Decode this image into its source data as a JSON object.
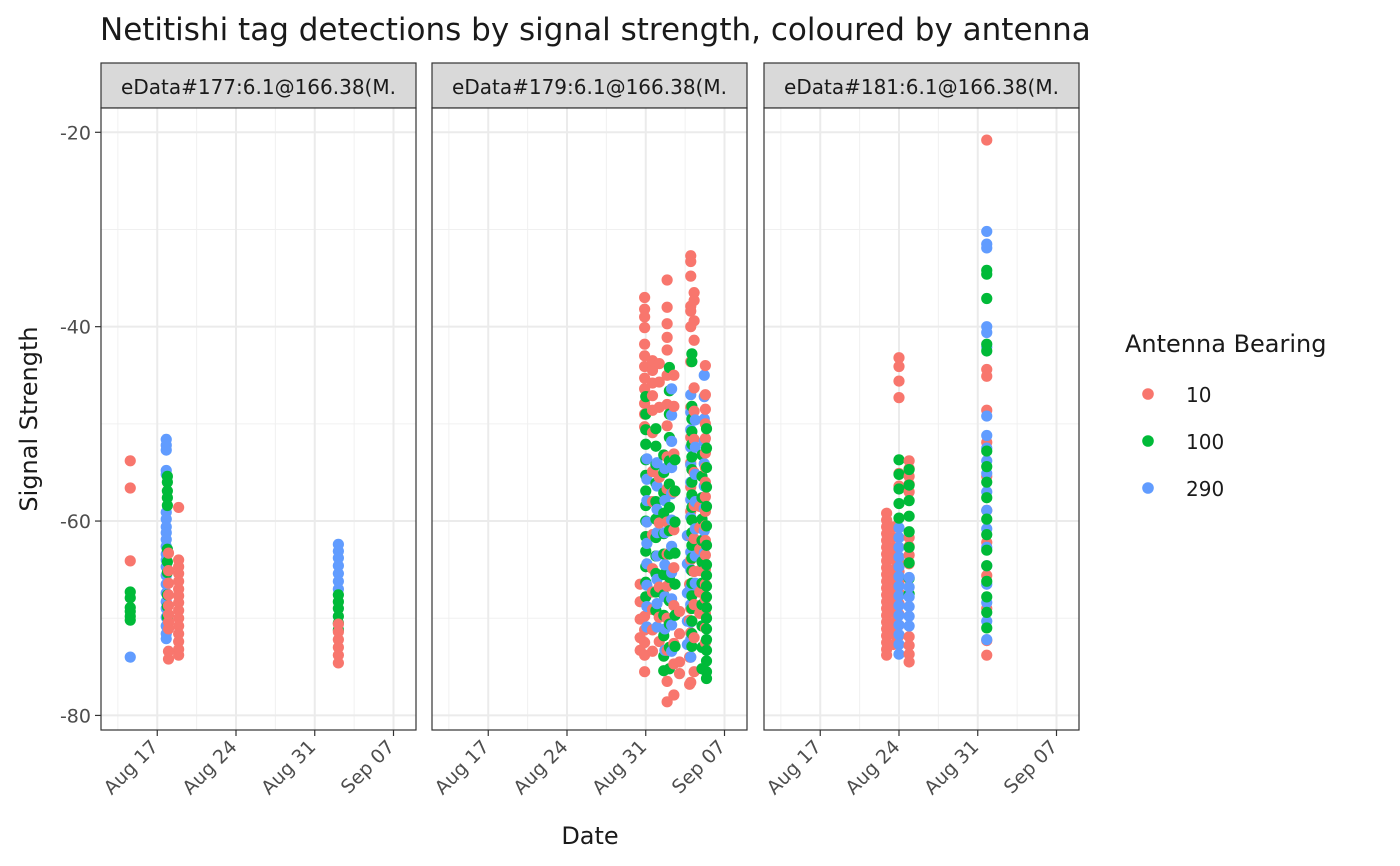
{
  "chart_data": {
    "type": "scatter",
    "title": "Netitishi tag detections by signal strength, coloured by antenna",
    "xlabel": "Date",
    "ylabel": "Signal Strength",
    "x_range": [
      "2023-08-12",
      "2023-09-09"
    ],
    "ylim": [
      -81.5,
      -17.5
    ],
    "y_ticks": [
      -20,
      -40,
      -60,
      -80
    ],
    "y_tick_labels": [
      "-20",
      "-40",
      "-60",
      "-80"
    ],
    "x_ticks": [
      "2023-08-17",
      "2023-08-24",
      "2023-08-31",
      "2023-09-07"
    ],
    "x_tick_labels": [
      "Aug 17",
      "Aug 24",
      "Aug 31",
      "Sep 07"
    ],
    "grid": true,
    "legend": {
      "title": "Antenna Bearing",
      "placement": "right",
      "entries": [
        {
          "label": "10",
          "color": "#F8766D"
        },
        {
          "label": "100",
          "color": "#00BA38"
        },
        {
          "label": "290",
          "color": "#619CFF"
        }
      ]
    },
    "panels": [
      {
        "strip": "eData#177:6.1@166.38(M.",
        "clusters": [
          {
            "date": "2023-08-14.6",
            "antenna": "10",
            "values": [
              -53.8,
              -56.6,
              -64.1
            ]
          },
          {
            "date": "2023-08-14.6",
            "antenna": "100",
            "values": [
              -67.3,
              -67.9,
              -68.9,
              -69.3,
              -69.8,
              -70.2
            ]
          },
          {
            "date": "2023-08-14.6",
            "antenna": "290",
            "values": [
              -74.0
            ]
          },
          {
            "date": "2023-08-17.8",
            "antenna": "290",
            "values": [
              -51.6,
              -52.2,
              -52.7,
              -54.8,
              -55.2,
              -59.1,
              -59.8,
              -60.6,
              -61.2,
              -61.9,
              -62.6,
              -63.4,
              -64.0,
              -64.7,
              -65.6,
              -66.5,
              -67.4,
              -68.3,
              -69.0,
              -69.9,
              -70.8,
              -71.6,
              -72.1
            ]
          },
          {
            "date": "2023-08-17.9",
            "antenna": "100",
            "values": [
              -55.4,
              -56.0,
              -56.9,
              -57.6,
              -58.4,
              -62.9,
              -64.2,
              -65.3,
              -67.6,
              -68.8,
              -69.9
            ]
          },
          {
            "date": "2023-08-18.0",
            "antenna": "10",
            "values": [
              -63.3,
              -65.1,
              -66.4,
              -67.6,
              -68.7,
              -69.6,
              -70.4,
              -71.1,
              -73.4,
              -74.2
            ]
          },
          {
            "date": "2023-08-18.9",
            "antenna": "10",
            "values": [
              -58.6,
              -64.0,
              -64.7,
              -65.4,
              -66.2,
              -67.0,
              -67.7,
              -68.4,
              -69.2,
              -70.0,
              -70.8,
              -71.6,
              -72.4,
              -73.2,
              -73.8
            ]
          },
          {
            "date": "2023-09-02.1",
            "antenna": "290",
            "values": [
              -62.4,
              -63.1,
              -63.8,
              -64.6,
              -65.4,
              -66.2,
              -67.0
            ]
          },
          {
            "date": "2023-09-02.1",
            "antenna": "100",
            "values": [
              -67.6,
              -68.3,
              -69.0,
              -69.8,
              -70.5,
              -71.2
            ]
          },
          {
            "date": "2023-09-02.1",
            "antenna": "10",
            "values": [
              -70.6,
              -71.4,
              -72.2,
              -73.0,
              -73.8,
              -74.6
            ]
          }
        ]
      },
      {
        "strip": "eData#179:6.1@166.38(M.",
        "clusters": [
          {
            "date": "2023-08-30.5",
            "antenna": "10",
            "values": [
              -66.5,
              -68.3,
              -70.1,
              -72.0,
              -73.3
            ]
          },
          {
            "date": "2023-08-30.9",
            "antenna": "10",
            "values": [
              -37.0,
              -38.2,
              -39.0,
              -40.1,
              -41.8,
              -43.0,
              -44.1,
              -45.3,
              -46.4,
              -47.9,
              -49.0,
              -50.3,
              -69.8,
              -71.2,
              -72.5,
              -73.8,
              -75.5
            ]
          },
          {
            "date": "2023-08-31.0",
            "antenna": "100",
            "values": [
              -47.2,
              -49.0,
              -50.6,
              -52.1,
              -53.7,
              -55.3,
              -56.9,
              -58.4,
              -60.0,
              -61.6,
              -63.1,
              -64.7,
              -66.3,
              -67.8
            ]
          },
          {
            "date": "2023-08-31.1",
            "antenna": "290",
            "values": [
              -53.6,
              -55.7,
              -57.9,
              -60.1,
              -62.3,
              -64.4,
              -66.6,
              -68.8,
              -70.9
            ]
          },
          {
            "date": "2023-08-31.6",
            "antenna": "10",
            "values": [
              -43.5,
              -44.5,
              -45.8,
              -47.1,
              -48.6,
              -50.9,
              -54.9,
              -58.0,
              -61.4,
              -64.9,
              -67.3,
              -69.1,
              -71.2,
              -73.4
            ]
          },
          {
            "date": "2023-08-31.9",
            "antenna": "100",
            "values": [
              -50.5,
              -52.3,
              -54.2,
              -56.1,
              -58.0,
              -59.8,
              -61.7,
              -63.6,
              -65.4,
              -67.3,
              -69.2
            ]
          },
          {
            "date": "2023-08-32.0",
            "antenna": "290",
            "values": [
              -54.0,
              -56.4,
              -58.8,
              -61.2,
              -63.6,
              -66.0,
              -68.5,
              -70.9
            ]
          },
          {
            "date": "2023-08-32.2",
            "antenna": "10",
            "values": [
              -43.8,
              -45.7,
              -48.3,
              -55.5,
              -60.2,
              -66.8,
              -69.9,
              -72.4
            ]
          },
          {
            "date": "2023-08-32.6",
            "antenna": "100",
            "values": [
              -53.2,
              -55.0,
              -57.1,
              -59.2,
              -61.3,
              -63.4,
              -65.5,
              -67.6,
              -69.7,
              -71.8,
              -73.9,
              -75.4
            ]
          },
          {
            "date": "2023-08-32.7",
            "antenna": "290",
            "values": [
              -54.6,
              -57.9,
              -61.2,
              -64.5,
              -67.8,
              -71.1,
              -73.3
            ]
          },
          {
            "date": "2023-08-32.9",
            "antenna": "10",
            "values": [
              -35.2,
              -38.0,
              -39.7,
              -41.1,
              -42.4,
              -45.0,
              -48.0,
              -50.2,
              -53.4,
              -56.7,
              -60.1,
              -63.4,
              -66.7,
              -70.0,
              -73.3,
              -76.5,
              -78.6
            ]
          },
          {
            "date": "2023-08-33.1",
            "antenna": "100",
            "values": [
              -44.2,
              -46.6,
              -49.0,
              -51.4,
              -53.8,
              -56.2,
              -58.6,
              -61.0,
              -63.4,
              -65.8,
              -68.2,
              -70.6,
              -73.0,
              -75.2
            ]
          },
          {
            "date": "2023-08-33.3",
            "antenna": "290",
            "values": [
              -46.4,
              -49.1,
              -51.8,
              -54.5,
              -57.2,
              -59.9,
              -62.6,
              -65.3,
              -68.0,
              -70.7,
              -73.4
            ]
          },
          {
            "date": "2023-08-33.5",
            "antenna": "10",
            "values": [
              -45.0,
              -48.2,
              -53.1,
              -57.0,
              -60.9,
              -64.8,
              -68.7,
              -72.6,
              -74.7,
              -77.9
            ]
          },
          {
            "date": "2023-08-33.6",
            "antenna": "100",
            "values": [
              -53.7,
              -56.9,
              -60.1,
              -63.3,
              -66.5,
              -69.7,
              -72.9
            ]
          },
          {
            "date": "2023-08-34.0",
            "antenna": "10",
            "values": [
              -69.3,
              -71.6,
              -74.5,
              -75.7
            ]
          },
          {
            "date": "2023-08-34.7",
            "antenna": "290",
            "values": [
              -61.5,
              -64.4,
              -67.4,
              -70.3,
              -72.7
            ]
          },
          {
            "date": "2023-08-34.9",
            "antenna": "10",
            "values": [
              -66.5,
              -70.2,
              -74.0,
              -76.8
            ]
          },
          {
            "date": "2023-08-35.0",
            "antenna": "10",
            "values": [
              -32.7,
              -33.3,
              -34.8,
              -37.9,
              -38.4,
              -40.0,
              -43.6,
              -48.3,
              -51.4,
              -54.0,
              -56.5,
              -59.0,
              -61.5,
              -64.0,
              -66.5,
              -69.0,
              -71.5,
              -74.0,
              -76.6
            ]
          },
          {
            "date": "2023-08-35.0",
            "antenna": "290",
            "values": [
              -47.0,
              -48.8,
              -50.6,
              -52.4,
              -54.2,
              -56.0,
              -57.8,
              -59.6,
              -61.4,
              -63.2,
              -65.0,
              -66.8,
              -68.6,
              -70.4,
              -72.2,
              -74.0
            ]
          },
          {
            "date": "2023-08-35.1",
            "antenna": "100",
            "values": [
              -42.8,
              -43.6,
              -48.2,
              -49.5,
              -50.8,
              -52.1,
              -53.4,
              -54.7,
              -56.0,
              -57.3,
              -58.6,
              -59.9,
              -61.2,
              -62.5,
              -63.8,
              -65.1,
              -66.4,
              -67.7,
              -69.0,
              -70.3,
              -71.6,
              -72.9
            ]
          },
          {
            "date": "2023-08-35.3",
            "antenna": "10",
            "values": [
              -36.5,
              -37.3,
              -39.4,
              -41.4,
              -46.3,
              -48.7,
              -51.6,
              -55.0,
              -58.4,
              -61.8,
              -65.2,
              -68.6,
              -72.0,
              -75.5
            ]
          },
          {
            "date": "2023-08-35.4",
            "antenna": "290",
            "values": [
              -49.6,
              -52.4,
              -55.2,
              -58.0,
              -60.8,
              -63.6,
              -66.4
            ]
          },
          {
            "date": "2023-08-35.8",
            "antenna": "10",
            "values": [
              -58.5,
              -60.7,
              -62.9,
              -65.1,
              -67.3,
              -69.5
            ]
          },
          {
            "date": "2023-08-36.0",
            "antenna": "100",
            "values": [
              -53.2,
              -55.4,
              -57.6,
              -59.8,
              -62.0,
              -64.2,
              -66.4,
              -68.6,
              -70.8,
              -73.0,
              -75.2
            ]
          },
          {
            "date": "2023-08-36.2",
            "antenna": "290",
            "values": [
              -45.0,
              -47.2,
              -49.5,
              -51.8,
              -54.1,
              -56.4,
              -58.7,
              -61.0,
              -63.3
            ]
          },
          {
            "date": "2023-08-36.3",
            "antenna": "10",
            "values": [
              -44.0,
              -47.0,
              -48.5,
              -50.0,
              -51.5,
              -53.0,
              -54.5,
              -56.0,
              -57.5,
              -59.0,
              -60.5,
              -62.0,
              -63.5,
              -65.0,
              -66.5,
              -68.0,
              -69.5,
              -71.0,
              -72.5
            ]
          },
          {
            "date": "2023-08-36.4",
            "antenna": "100",
            "values": [
              -50.5,
              -52.5,
              -54.5,
              -56.5,
              -58.5,
              -60.5,
              -62.5,
              -64.5,
              -65.6,
              -66.7,
              -67.8,
              -68.9,
              -70.0,
              -71.1,
              -72.2,
              -73.3,
              -74.4,
              -75.5,
              -76.2
            ]
          }
        ]
      },
      {
        "strip": "eData#181:6.1@166.38(M.",
        "clusters": [
          {
            "date": "2023-08-22.9",
            "antenna": "10",
            "values": [
              -59.2,
              -59.9,
              -60.6,
              -61.3,
              -62.0,
              -62.7,
              -63.4,
              -64.1,
              -64.8,
              -65.5,
              -66.2,
              -66.9,
              -67.6,
              -68.3,
              -69.0,
              -69.7,
              -70.4,
              -71.1,
              -71.8,
              -72.5,
              -73.2,
              -73.8
            ]
          },
          {
            "date": "2023-08-23.5",
            "antenna": "10",
            "values": [
              -60.6,
              -61.7,
              -62.8,
              -63.9,
              -65.0,
              -66.1,
              -67.2,
              -68.3,
              -69.4,
              -70.5,
              -71.6,
              -72.7
            ]
          },
          {
            "date": "2023-08-24.0",
            "antenna": "10",
            "values": [
              -43.2,
              -44.1,
              -45.6,
              -47.3,
              -55.1,
              -56.4,
              -64.1,
              -65.2,
              -66.3,
              -67.4,
              -68.5,
              -69.6,
              -70.7,
              -71.8
            ]
          },
          {
            "date": "2023-08-24.0",
            "antenna": "290",
            "values": [
              -60.7,
              -61.7,
              -62.7,
              -63.7,
              -64.7,
              -65.7,
              -66.7,
              -67.7,
              -68.7,
              -69.7,
              -70.7,
              -71.7,
              -72.7,
              -73.7
            ]
          },
          {
            "date": "2023-08-24.0",
            "antenna": "100",
            "values": [
              -53.7,
              -55.2,
              -56.7,
              -58.2,
              -59.7
            ]
          },
          {
            "date": "2023-08-24.9",
            "antenna": "10",
            "values": [
              -53.8,
              -54.6,
              -55.4,
              -56.2,
              -57.0,
              -61.7,
              -62.6,
              -63.5,
              -64.4,
              -71.9,
              -72.8,
              -73.7,
              -74.5
            ]
          },
          {
            "date": "2023-08-24.9",
            "antenna": "100",
            "values": [
              -54.7,
              -56.3,
              -57.9,
              -59.5,
              -61.1,
              -62.7,
              -64.3,
              -65.9,
              -67.5
            ]
          },
          {
            "date": "2023-08-24.9",
            "antenna": "290",
            "values": [
              -65.8,
              -66.8,
              -67.8,
              -68.8,
              -69.8,
              -70.8
            ]
          },
          {
            "date": "2023-08-31.8",
            "antenna": "10",
            "values": [
              -20.8,
              -44.4,
              -45.1,
              -48.6,
              -51.9,
              -55.4,
              -58.9,
              -62.2,
              -65.6,
              -69.0,
              -72.3,
              -73.8
            ]
          },
          {
            "date": "2023-08-31.8",
            "antenna": "290",
            "values": [
              -30.2,
              -31.5,
              -31.9,
              -40.0,
              -40.6,
              -42.1,
              -49.2,
              -51.2,
              -52.5,
              -53.8,
              -55.1,
              -57.0,
              -58.9,
              -60.8,
              -62.7,
              -64.6,
              -66.5,
              -68.4,
              -70.3,
              -72.2
            ]
          },
          {
            "date": "2023-08-31.8",
            "antenna": "100",
            "values": [
              -34.2,
              -34.6,
              -37.1,
              -41.8,
              -42.5,
              -52.8,
              -54.4,
              -56.0,
              -57.6,
              -59.8,
              -61.4,
              -63.0,
              -64.6,
              -66.2,
              -67.8,
              -69.4,
              -71.0
            ]
          }
        ]
      }
    ]
  }
}
